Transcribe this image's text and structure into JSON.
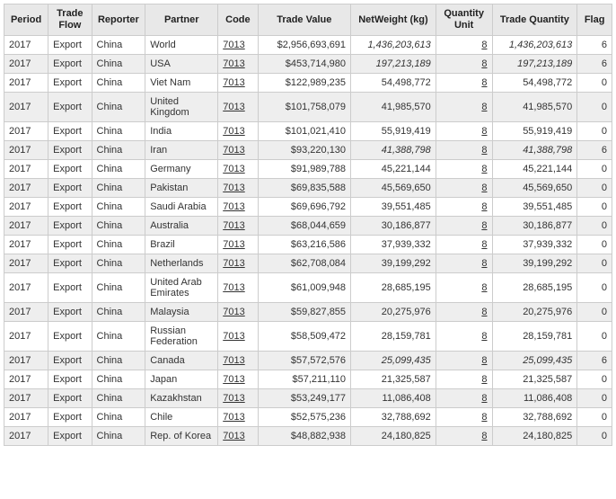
{
  "columns": [
    {
      "key": "period",
      "label": "Period",
      "align": "l",
      "cls": "col-period"
    },
    {
      "key": "flow",
      "label": "Trade Flow",
      "align": "l",
      "cls": "col-flow"
    },
    {
      "key": "reporter",
      "label": "Reporter",
      "align": "l",
      "cls": "col-reporter"
    },
    {
      "key": "partner",
      "label": "Partner",
      "align": "l",
      "cls": "col-partner"
    },
    {
      "key": "code",
      "label": "Code",
      "align": "l",
      "cls": "col-code",
      "link": true
    },
    {
      "key": "value",
      "label": "Trade Value",
      "align": "r",
      "cls": "col-value"
    },
    {
      "key": "netw",
      "label": "NetWeight (kg)",
      "align": "r",
      "cls": "col-netw"
    },
    {
      "key": "unit",
      "label": "Quantity Unit",
      "align": "r",
      "cls": "col-unit",
      "link": true
    },
    {
      "key": "qty",
      "label": "Trade Quantity",
      "align": "r",
      "cls": "col-qty"
    },
    {
      "key": "flag",
      "label": "Flag",
      "align": "r",
      "cls": "col-flag"
    }
  ],
  "rows": [
    {
      "period": "2017",
      "flow": "Export",
      "reporter": "China",
      "partner": "World",
      "code": "7013",
      "value": "$2,956,693,691",
      "netw": "1,436,203,613",
      "netw_it": true,
      "unit": "8",
      "qty": "1,436,203,613",
      "qty_it": true,
      "flag": "6"
    },
    {
      "period": "2017",
      "flow": "Export",
      "reporter": "China",
      "partner": "USA",
      "code": "7013",
      "value": "$453,714,980",
      "netw": "197,213,189",
      "netw_it": true,
      "unit": "8",
      "qty": "197,213,189",
      "qty_it": true,
      "flag": "6"
    },
    {
      "period": "2017",
      "flow": "Export",
      "reporter": "China",
      "partner": "Viet Nam",
      "code": "7013",
      "value": "$122,989,235",
      "netw": "54,498,772",
      "unit": "8",
      "qty": "54,498,772",
      "flag": "0"
    },
    {
      "period": "2017",
      "flow": "Export",
      "reporter": "China",
      "partner": "United Kingdom",
      "code": "7013",
      "value": "$101,758,079",
      "netw": "41,985,570",
      "unit": "8",
      "qty": "41,985,570",
      "flag": "0"
    },
    {
      "period": "2017",
      "flow": "Export",
      "reporter": "China",
      "partner": "India",
      "code": "7013",
      "value": "$101,021,410",
      "netw": "55,919,419",
      "unit": "8",
      "qty": "55,919,419",
      "flag": "0"
    },
    {
      "period": "2017",
      "flow": "Export",
      "reporter": "China",
      "partner": "Iran",
      "code": "7013",
      "value": "$93,220,130",
      "netw": "41,388,798",
      "netw_it": true,
      "unit": "8",
      "qty": "41,388,798",
      "qty_it": true,
      "flag": "6"
    },
    {
      "period": "2017",
      "flow": "Export",
      "reporter": "China",
      "partner": "Germany",
      "code": "7013",
      "value": "$91,989,788",
      "netw": "45,221,144",
      "unit": "8",
      "qty": "45,221,144",
      "flag": "0"
    },
    {
      "period": "2017",
      "flow": "Export",
      "reporter": "China",
      "partner": "Pakistan",
      "code": "7013",
      "value": "$69,835,588",
      "netw": "45,569,650",
      "unit": "8",
      "qty": "45,569,650",
      "flag": "0"
    },
    {
      "period": "2017",
      "flow": "Export",
      "reporter": "China",
      "partner": "Saudi Arabia",
      "code": "7013",
      "value": "$69,696,792",
      "netw": "39,551,485",
      "unit": "8",
      "qty": "39,551,485",
      "flag": "0"
    },
    {
      "period": "2017",
      "flow": "Export",
      "reporter": "China",
      "partner": "Australia",
      "code": "7013",
      "value": "$68,044,659",
      "netw": "30,186,877",
      "unit": "8",
      "qty": "30,186,877",
      "flag": "0"
    },
    {
      "period": "2017",
      "flow": "Export",
      "reporter": "China",
      "partner": "Brazil",
      "code": "7013",
      "value": "$63,216,586",
      "netw": "37,939,332",
      "unit": "8",
      "qty": "37,939,332",
      "flag": "0"
    },
    {
      "period": "2017",
      "flow": "Export",
      "reporter": "China",
      "partner": "Netherlands",
      "code": "7013",
      "value": "$62,708,084",
      "netw": "39,199,292",
      "unit": "8",
      "qty": "39,199,292",
      "flag": "0"
    },
    {
      "period": "2017",
      "flow": "Export",
      "reporter": "China",
      "partner": "United Arab Emirates",
      "code": "7013",
      "value": "$61,009,948",
      "netw": "28,685,195",
      "unit": "8",
      "qty": "28,685,195",
      "flag": "0"
    },
    {
      "period": "2017",
      "flow": "Export",
      "reporter": "China",
      "partner": "Malaysia",
      "code": "7013",
      "value": "$59,827,855",
      "netw": "20,275,976",
      "unit": "8",
      "qty": "20,275,976",
      "flag": "0"
    },
    {
      "period": "2017",
      "flow": "Export",
      "reporter": "China",
      "partner": "Russian Federation",
      "code": "7013",
      "value": "$58,509,472",
      "netw": "28,159,781",
      "unit": "8",
      "qty": "28,159,781",
      "flag": "0"
    },
    {
      "period": "2017",
      "flow": "Export",
      "reporter": "China",
      "partner": "Canada",
      "code": "7013",
      "value": "$57,572,576",
      "netw": "25,099,435",
      "netw_it": true,
      "unit": "8",
      "qty": "25,099,435",
      "qty_it": true,
      "flag": "6"
    },
    {
      "period": "2017",
      "flow": "Export",
      "reporter": "China",
      "partner": "Japan",
      "code": "7013",
      "value": "$57,211,110",
      "netw": "21,325,587",
      "unit": "8",
      "qty": "21,325,587",
      "flag": "0"
    },
    {
      "period": "2017",
      "flow": "Export",
      "reporter": "China",
      "partner": "Kazakhstan",
      "code": "7013",
      "value": "$53,249,177",
      "netw": "11,086,408",
      "unit": "8",
      "qty": "11,086,408",
      "flag": "0"
    },
    {
      "period": "2017",
      "flow": "Export",
      "reporter": "China",
      "partner": "Chile",
      "code": "7013",
      "value": "$52,575,236",
      "netw": "32,788,692",
      "unit": "8",
      "qty": "32,788,692",
      "flag": "0"
    },
    {
      "period": "2017",
      "flow": "Export",
      "reporter": "China",
      "partner": "Rep. of Korea",
      "code": "7013",
      "value": "$48,882,938",
      "netw": "24,180,825",
      "unit": "8",
      "qty": "24,180,825",
      "flag": "0"
    }
  ]
}
